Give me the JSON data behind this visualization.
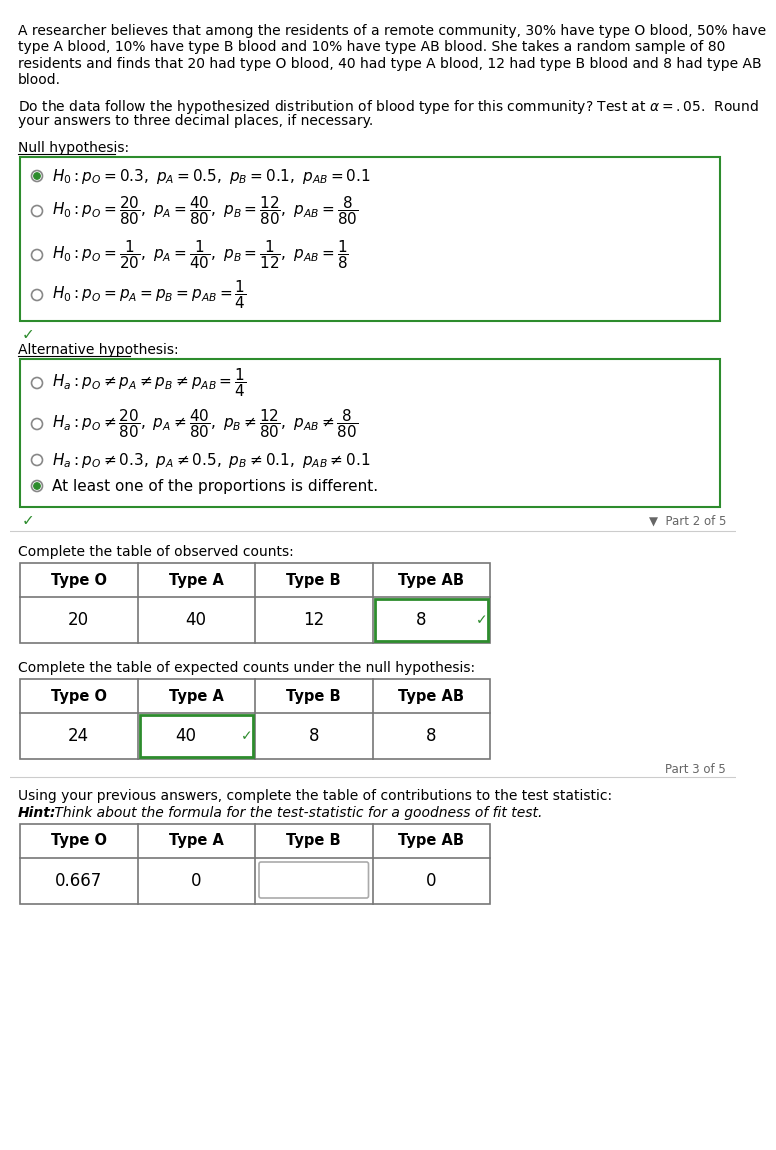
{
  "intro_lines": [
    "A researcher believes that among the residents of a remote community, 30% have type O blood, 50% have",
    "type A blood, 10% have type B blood and 10% have type AB blood. She takes a random sample of 80",
    "residents and finds that 20 had type O blood, 40 had type A blood, 12 had type B blood and 8 had type AB",
    "blood."
  ],
  "question_lines": [
    "Do the data follow the hypothesized distribution of blood type for this community? Test at $\\alpha = .05$.  Round",
    "your answers to three decimal places, if necessary."
  ],
  "null_label": "Null hypothesis:",
  "alt_label": "Alternative hypothesis:",
  "null_math": [
    "$H_0: p_O = 0.3,\\ p_A = 0.5,\\ p_B = 0.1,\\ p_{AB} = 0.1$",
    "$H_0: p_O = \\dfrac{20}{80},\\ p_A = \\dfrac{40}{80},\\ p_B = \\dfrac{12}{80},\\ p_{AB} = \\dfrac{8}{80}$",
    "$H_0: p_O = \\dfrac{1}{20},\\ p_A = \\dfrac{1}{40},\\ p_B = \\dfrac{1}{12},\\ p_{AB} = \\dfrac{1}{8}$",
    "$H_0: p_O = p_A = p_B = p_{AB} = \\dfrac{1}{4}$"
  ],
  "null_selected": [
    true,
    false,
    false,
    false
  ],
  "alt_math": [
    "$H_a: p_O \\neq p_A \\neq p_B \\neq p_{AB} = \\dfrac{1}{4}$",
    "$H_a: p_O \\neq \\dfrac{20}{80},\\ p_A \\neq \\dfrac{40}{80},\\ p_B \\neq \\dfrac{12}{80},\\ p_{AB} \\neq \\dfrac{8}{80}$",
    "$H_a: p_O \\neq 0.3,\\ p_A \\neq 0.5,\\ p_B \\neq 0.1,\\ p_{AB} \\neq 0.1$",
    "At least one of the proportions is different."
  ],
  "alt_selected": [
    false,
    false,
    false,
    true
  ],
  "green": "#2d8c2d",
  "gray_radio": "#888888",
  "part2_text": "▼  Part 2 of 5",
  "part3_text": "Part 3 of 5",
  "table1_label": "Complete the table of observed counts:",
  "table2_label": "Complete the table of expected counts under the null hypothesis:",
  "table3_label": "Using your previous answers, complete the table of contributions to the test statistic:",
  "hint_text": "Hint: Think about the formula for the test-statistic for a goodness of fit test.",
  "headers": [
    "Type O",
    "Type A",
    "Type B",
    "Type AB"
  ],
  "obs": [
    "20",
    "40",
    "12",
    "8"
  ],
  "exp": [
    "24",
    "40",
    "8",
    "8"
  ],
  "contrib": [
    "0.667",
    "0",
    "",
    "0"
  ],
  "obs_green_box": [
    false,
    false,
    false,
    true
  ],
  "exp_green_box": [
    false,
    true,
    false,
    false
  ],
  "contrib_gray_box": [
    false,
    false,
    true,
    false
  ]
}
